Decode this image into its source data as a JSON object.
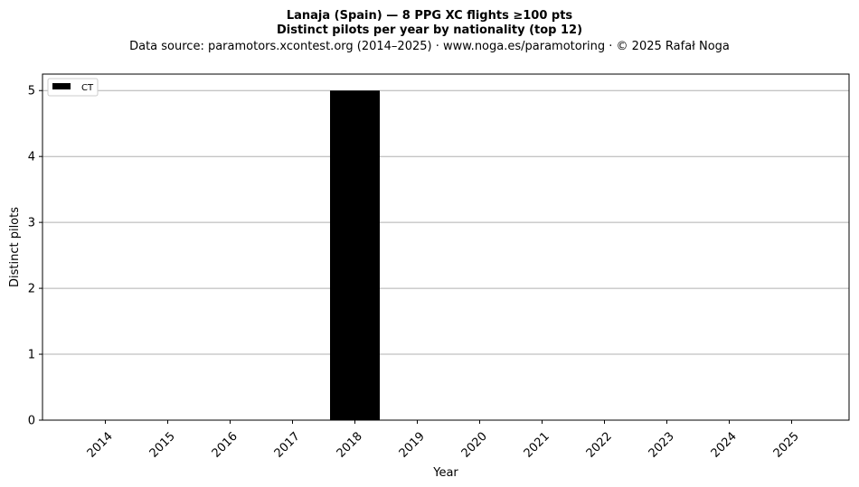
{
  "chart_data": {
    "type": "bar",
    "title": "Lanaja (Spain)  —  8 PPG XC flights ≥100 pts",
    "subtitle": "Distinct pilots per year by nationality (top 12)",
    "source": "Data source: paramotors.xcontest.org (2014–2025)  ·  www.noga.es/paramotoring  ·  © 2025 Rafał Noga",
    "xlabel": "Year",
    "ylabel": "Distinct pilots",
    "categories": [
      "2014",
      "2015",
      "2016",
      "2017",
      "2018",
      "2019",
      "2020",
      "2021",
      "2022",
      "2023",
      "2024",
      "2025"
    ],
    "series": [
      {
        "name": "CT",
        "color": "#000000",
        "values": [
          0,
          0,
          0,
          0,
          5,
          0,
          0,
          0,
          0,
          0,
          0,
          0
        ]
      }
    ],
    "ylim": [
      0,
      5.25
    ],
    "yticks": [
      "0",
      "1",
      "2",
      "3",
      "4",
      "5"
    ],
    "grid": "y",
    "legend": "top-left"
  }
}
